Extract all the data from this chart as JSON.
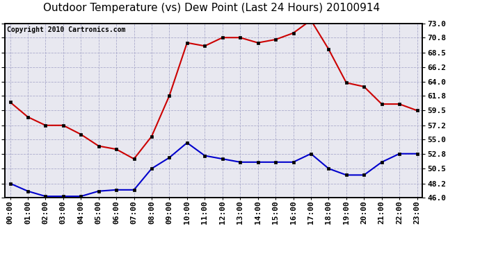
{
  "title": "Outdoor Temperature (vs) Dew Point (Last 24 Hours) 20100914",
  "copyright": "Copyright 2010 Cartronics.com",
  "hours": [
    "00:00",
    "01:00",
    "02:00",
    "03:00",
    "04:00",
    "05:00",
    "06:00",
    "07:00",
    "08:00",
    "09:00",
    "10:00",
    "11:00",
    "12:00",
    "13:00",
    "14:00",
    "15:00",
    "16:00",
    "17:00",
    "18:00",
    "19:00",
    "20:00",
    "21:00",
    "22:00",
    "23:00"
  ],
  "temp": [
    60.8,
    58.5,
    57.2,
    57.2,
    55.8,
    54.0,
    53.5,
    52.0,
    55.5,
    61.8,
    70.0,
    69.5,
    70.8,
    70.8,
    70.0,
    70.5,
    71.5,
    73.5,
    69.0,
    63.8,
    63.2,
    60.5,
    60.5,
    59.5
  ],
  "dew": [
    48.2,
    47.0,
    46.2,
    46.2,
    46.2,
    47.0,
    47.2,
    47.2,
    50.5,
    52.2,
    54.5,
    52.5,
    52.0,
    51.5,
    51.5,
    51.5,
    51.5,
    52.8,
    50.5,
    49.5,
    49.5,
    51.5,
    52.8,
    52.8
  ],
  "temp_color": "#cc0000",
  "dew_color": "#0000cc",
  "fig_bg_color": "#ffffff",
  "plot_bg_color": "#e8e8f0",
  "grid_color": "#aaaacc",
  "border_color": "#000000",
  "ylim": [
    46.0,
    73.0
  ],
  "yticks": [
    46.0,
    48.2,
    50.5,
    52.8,
    55.0,
    57.2,
    59.5,
    61.8,
    64.0,
    66.2,
    68.5,
    70.8,
    73.0
  ],
  "title_fontsize": 11,
  "copyright_fontsize": 7,
  "tick_fontsize": 8,
  "marker": "s",
  "markersize": 3,
  "linewidth": 1.5
}
